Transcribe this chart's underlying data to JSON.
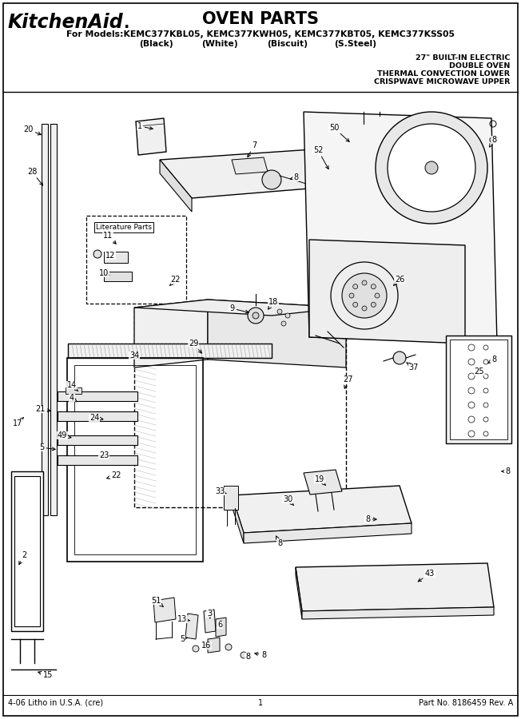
{
  "title": "OVEN PARTS",
  "brand": "KitchenAid.",
  "models_line": "For Models:KEMC377KBL05, KEMC377KWH05, KEMC377KBT05, KEMC377KSS05",
  "colors_line_items": [
    "(Black)",
    "(White)",
    "(Biscuit)",
    "(S.Steel)"
  ],
  "colors_line_x": [
    195,
    275,
    360,
    445
  ],
  "spec_line1": "27\" BUILT-IN ELECTRIC",
  "spec_line2": "DOUBLE OVEN",
  "spec_line3": "THERMAL CONVECTION LOWER",
  "spec_line4": "CRISPWAVE MICROWAVE UPPER",
  "footer_left": "4-06 Litho in U.S.A. (cre)",
  "footer_center": "1",
  "footer_right": "Part No. 8186459 Rev. A",
  "bg_color": "#ffffff",
  "fig_width": 6.52,
  "fig_height": 9.0,
  "dpi": 100
}
